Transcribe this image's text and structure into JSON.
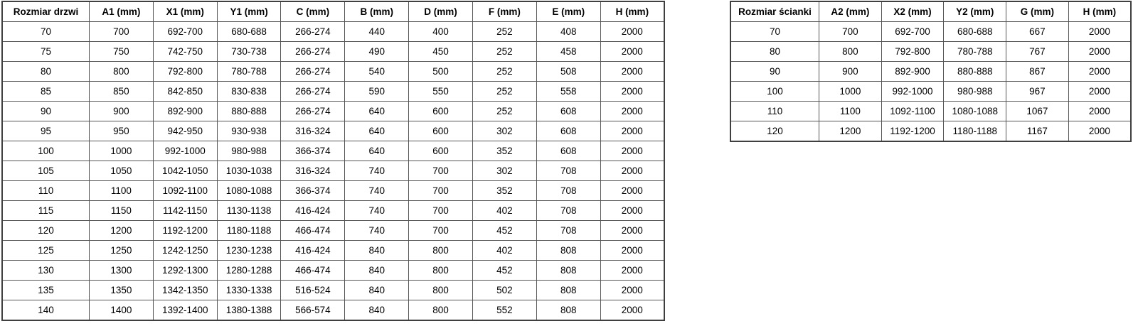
{
  "tables": {
    "doors": {
      "name": "door-sizes",
      "headers": [
        "Rozmiar drzwi",
        "A1 (mm)",
        "X1 (mm)",
        "Y1 (mm)",
        "C (mm)",
        "B (mm)",
        "D (mm)",
        "F (mm)",
        "E (mm)",
        "H (mm)"
      ],
      "rows": [
        [
          "70",
          "700",
          "692-700",
          "680-688",
          "266-274",
          "440",
          "400",
          "252",
          "408",
          "2000"
        ],
        [
          "75",
          "750",
          "742-750",
          "730-738",
          "266-274",
          "490",
          "450",
          "252",
          "458",
          "2000"
        ],
        [
          "80",
          "800",
          "792-800",
          "780-788",
          "266-274",
          "540",
          "500",
          "252",
          "508",
          "2000"
        ],
        [
          "85",
          "850",
          "842-850",
          "830-838",
          "266-274",
          "590",
          "550",
          "252",
          "558",
          "2000"
        ],
        [
          "90",
          "900",
          "892-900",
          "880-888",
          "266-274",
          "640",
          "600",
          "252",
          "608",
          "2000"
        ],
        [
          "95",
          "950",
          "942-950",
          "930-938",
          "316-324",
          "640",
          "600",
          "302",
          "608",
          "2000"
        ],
        [
          "100",
          "1000",
          "992-1000",
          "980-988",
          "366-374",
          "640",
          "600",
          "352",
          "608",
          "2000"
        ],
        [
          "105",
          "1050",
          "1042-1050",
          "1030-1038",
          "316-324",
          "740",
          "700",
          "302",
          "708",
          "2000"
        ],
        [
          "110",
          "1100",
          "1092-1100",
          "1080-1088",
          "366-374",
          "740",
          "700",
          "352",
          "708",
          "2000"
        ],
        [
          "115",
          "1150",
          "1142-1150",
          "1130-1138",
          "416-424",
          "740",
          "700",
          "402",
          "708",
          "2000"
        ],
        [
          "120",
          "1200",
          "1192-1200",
          "1180-1188",
          "466-474",
          "740",
          "700",
          "452",
          "708",
          "2000"
        ],
        [
          "125",
          "1250",
          "1242-1250",
          "1230-1238",
          "416-424",
          "840",
          "800",
          "402",
          "808",
          "2000"
        ],
        [
          "130",
          "1300",
          "1292-1300",
          "1280-1288",
          "466-474",
          "840",
          "800",
          "452",
          "808",
          "2000"
        ],
        [
          "135",
          "1350",
          "1342-1350",
          "1330-1338",
          "516-524",
          "840",
          "800",
          "502",
          "808",
          "2000"
        ],
        [
          "140",
          "1400",
          "1392-1400",
          "1380-1388",
          "566-574",
          "840",
          "800",
          "552",
          "808",
          "2000"
        ]
      ]
    },
    "walls": {
      "name": "wall-panel-sizes",
      "headers": [
        "Rozmiar ścianki",
        "A2 (mm)",
        "X2 (mm)",
        "Y2 (mm)",
        "G (mm)",
        "H (mm)"
      ],
      "rows": [
        [
          "70",
          "700",
          "692-700",
          "680-688",
          "667",
          "2000"
        ],
        [
          "80",
          "800",
          "792-800",
          "780-788",
          "767",
          "2000"
        ],
        [
          "90",
          "900",
          "892-900",
          "880-888",
          "867",
          "2000"
        ],
        [
          "100",
          "1000",
          "992-1000",
          "980-988",
          "967",
          "2000"
        ],
        [
          "110",
          "1100",
          "1092-1100",
          "1080-1088",
          "1067",
          "2000"
        ],
        [
          "120",
          "1200",
          "1192-1200",
          "1180-1188",
          "1167",
          "2000"
        ]
      ]
    }
  },
  "colors": {
    "border_outer": "#3f3f3f",
    "border_inner": "#555555",
    "text": "#000000",
    "background": "#ffffff"
  }
}
